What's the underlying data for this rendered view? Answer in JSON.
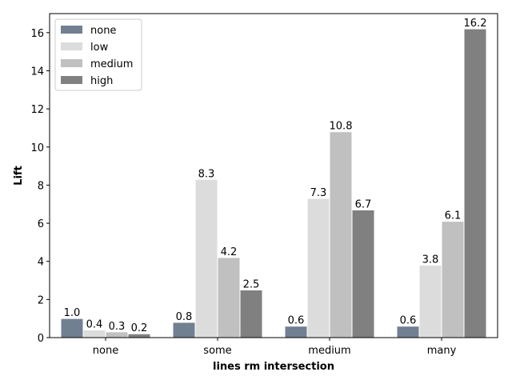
{
  "chart_data": {
    "type": "bar",
    "title": "",
    "xlabel": "lines rm intersection",
    "ylabel": "Lift",
    "categories": [
      "none",
      "some",
      "medium",
      "many"
    ],
    "series": [
      {
        "name": "none",
        "color": "#708090",
        "values": [
          1.0,
          0.8,
          0.6,
          0.6
        ],
        "labels": [
          "1.0",
          "0.8",
          "0.6",
          "0.6"
        ]
      },
      {
        "name": "low",
        "color": "#dcdcdc",
        "values": [
          0.4,
          8.3,
          7.3,
          3.8
        ],
        "labels": [
          "0.4",
          "8.3",
          "7.3",
          "3.8"
        ]
      },
      {
        "name": "medium",
        "color": "#c0c0c0",
        "values": [
          0.3,
          4.2,
          10.8,
          6.1
        ],
        "labels": [
          "0.3",
          "4.2",
          "10.8",
          "6.1"
        ]
      },
      {
        "name": "high",
        "color": "#808080",
        "values": [
          0.2,
          2.5,
          6.7,
          16.2
        ],
        "labels": [
          "0.2",
          "2.5",
          "6.7",
          "16.2"
        ]
      }
    ],
    "ylim": [
      0,
      17
    ],
    "yticks": [
      0,
      2,
      4,
      6,
      8,
      10,
      12,
      14,
      16
    ],
    "ytick_labels": [
      "0",
      "2",
      "4",
      "6",
      "8",
      "10",
      "12",
      "14",
      "16"
    ],
    "grid": false,
    "legend_position": "top-left"
  }
}
